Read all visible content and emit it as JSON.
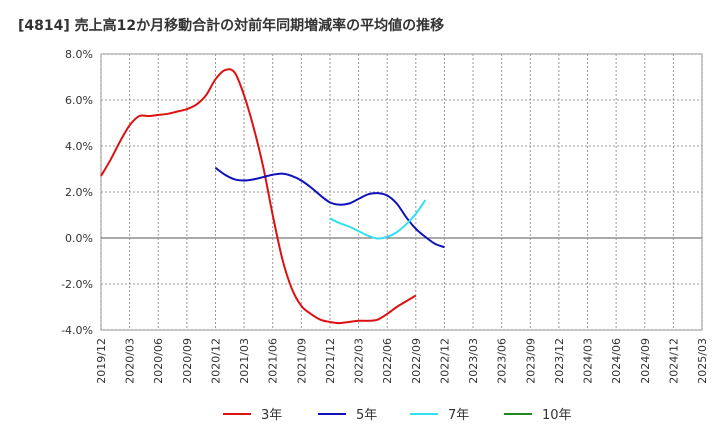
{
  "chart_data": {
    "type": "line",
    "title": "[4814]  売上高12か月移動合計の対前年同期増減率の平均値の推移",
    "xlabel": "",
    "ylabel": "",
    "ylim": [
      -4.0,
      8.0
    ],
    "yticks": [
      8.0,
      6.0,
      4.0,
      2.0,
      0.0,
      -2.0,
      -4.0
    ],
    "ytick_labels": [
      "8.0%",
      "6.0%",
      "4.0%",
      "2.0%",
      "0.0%",
      "-2.0%",
      "-4.0%"
    ],
    "x_categories": [
      "2019/12",
      "2020/03",
      "2020/06",
      "2020/09",
      "2020/12",
      "2021/03",
      "2021/06",
      "2021/09",
      "2021/12",
      "2022/03",
      "2022/06",
      "2022/09",
      "2022/12",
      "2023/03",
      "2023/06",
      "2023/09",
      "2023/12",
      "2024/03",
      "2024/06",
      "2024/09",
      "2024/12",
      "2025/03"
    ],
    "grid": true,
    "legend_position": "bottom",
    "series": [
      {
        "name": "3年",
        "color": "#dd1111",
        "start_index": 0,
        "values": [
          2.7,
          3.4,
          4.2,
          4.9,
          5.3,
          5.3,
          5.35,
          5.4,
          5.5,
          5.6,
          5.8,
          6.2,
          6.9,
          7.3,
          7.2,
          6.2,
          4.8,
          3.1,
          1.0,
          -0.9,
          -2.2,
          -2.95,
          -3.3,
          -3.55,
          -3.65,
          -3.7,
          -3.65,
          -3.6,
          -3.6,
          -3.55,
          -3.3,
          -3.0,
          -2.75,
          -2.5
        ]
      },
      {
        "name": "5年",
        "color": "#1111bb",
        "start_index": 12,
        "values": [
          3.05,
          2.75,
          2.55,
          2.5,
          2.55,
          2.65,
          2.75,
          2.8,
          2.7,
          2.5,
          2.2,
          1.85,
          1.55,
          1.45,
          1.5,
          1.7,
          1.9,
          1.95,
          1.85,
          1.5,
          0.9,
          0.4,
          0.05,
          -0.25,
          -0.4
        ]
      },
      {
        "name": "7年",
        "color": "#33e0f0",
        "start_index": 24,
        "values": [
          0.85,
          0.65,
          0.5,
          0.3,
          0.1,
          -0.02,
          0.05,
          0.25,
          0.6,
          1.05,
          1.65
        ]
      },
      {
        "name": "10年",
        "color": "#228822",
        "start_index": 0,
        "values": []
      }
    ]
  }
}
